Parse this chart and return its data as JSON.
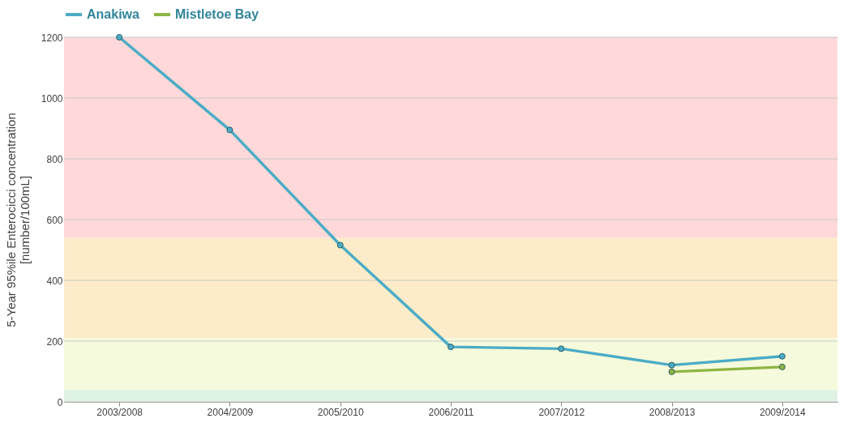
{
  "chart_data": {
    "type": "line",
    "ylabel": "5-Year 95%ile Enterocicci concentration\n[number/100mL]",
    "categories": [
      "2003/2008",
      "2004/2009",
      "2005/2010",
      "2006/2011",
      "2007/2012",
      "2008/2013",
      "2009/2014"
    ],
    "series": [
      {
        "name": "Anakiwa",
        "color": "#4bacc6",
        "values": [
          1200,
          895,
          516,
          181,
          175,
          121,
          150
        ]
      },
      {
        "name": "Mistletoe Bay",
        "color": "#8db543",
        "values": [
          null,
          null,
          null,
          null,
          null,
          99,
          115
        ]
      }
    ],
    "ylim": [
      0,
      1200
    ],
    "yticks": [
      0,
      200,
      400,
      600,
      800,
      1000,
      1200
    ],
    "bands": [
      {
        "axis": "y",
        "from": 540,
        "to": 1200,
        "color": "#ffd9d9"
      },
      {
        "axis": "y",
        "from": 210,
        "to": 540,
        "color": "#fdecc9"
      },
      {
        "axis": "y",
        "from": 40,
        "to": 210,
        "color": "#f6fadc"
      },
      {
        "axis": "y",
        "from": 0,
        "to": 40,
        "color": "#dff3e4"
      }
    ],
    "grid": "y",
    "legend": "top",
    "marker": "circle",
    "line_style": "solid"
  }
}
